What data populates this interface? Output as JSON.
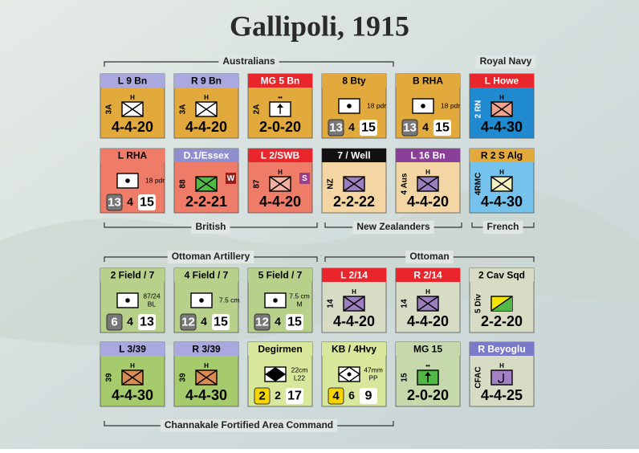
{
  "title": "Gallipoli, 1915",
  "groups": [
    {
      "label": "Australians"
    },
    {
      "label": "Royal Navy"
    },
    {
      "label": "British"
    },
    {
      "label": "New Zealanders"
    },
    {
      "label": "French"
    },
    {
      "label": "Ottoman Artillery"
    },
    {
      "label": "Ottoman"
    },
    {
      "label": "Channakale Fortified Area Command"
    }
  ],
  "counters": [
    {
      "header": "L 9 Bn",
      "size": "H",
      "side": "3A",
      "strength": [
        "4-4-20"
      ]
    },
    {
      "header": "R 9 Bn",
      "size": "H",
      "side": "3A",
      "strength": [
        "4-4-20"
      ]
    },
    {
      "header": "MG 5 Bn",
      "size": "••",
      "side": "2A",
      "strength": [
        "2-0-20"
      ]
    },
    {
      "header": "8 Bty",
      "note": [
        "18 pdr"
      ],
      "strength": [
        "13",
        "4",
        "15"
      ]
    },
    {
      "header": "B RHA",
      "note": [
        "18 pdr"
      ],
      "strength": [
        "13",
        "4",
        "15"
      ]
    },
    {
      "header": "L Howe",
      "size": "H",
      "side": "2 RN",
      "strength": [
        "4-4-30"
      ]
    },
    {
      "header": "L RHA",
      "note": [
        "18 pdr"
      ],
      "strength": [
        "13",
        "4",
        "15"
      ]
    },
    {
      "header": "D.1/Essex",
      "side": "88",
      "badge": "W",
      "strength": [
        "2-2-21"
      ]
    },
    {
      "header": "L 2/SWB",
      "size": "H",
      "side": "87",
      "badge": "S",
      "strength": [
        "4-4-20"
      ]
    },
    {
      "header": "7 / Well",
      "side": "NZ",
      "strength": [
        "2-2-22"
      ]
    },
    {
      "header": "L 16 Bn",
      "size": "H",
      "side": "4 Aus",
      "strength": [
        "4-4-20"
      ]
    },
    {
      "header": "R 2 S Alg",
      "size": "H",
      "side": "4RMC",
      "strength": [
        "4-4-30"
      ]
    },
    {
      "header": "2 Field / 7",
      "note": [
        "87/24",
        "BL"
      ],
      "strength": [
        "6",
        "4",
        "13"
      ]
    },
    {
      "header": "4 Field / 7",
      "note": [
        "7.5 cm"
      ],
      "strength": [
        "12",
        "4",
        "15"
      ]
    },
    {
      "header": "5 Field / 7",
      "note": [
        "7.5 cm",
        "M"
      ],
      "strength": [
        "12",
        "4",
        "15"
      ]
    },
    {
      "header": "L 2/14",
      "size": "H",
      "side": "14",
      "strength": [
        "4-4-20"
      ]
    },
    {
      "header": "R 2/14",
      "size": "H",
      "side": "14",
      "strength": [
        "4-4-20"
      ]
    },
    {
      "header": "2 Cav Sqd",
      "side": "5 Div",
      "strength": [
        "2-2-20"
      ]
    },
    {
      "header": "L 3/39",
      "size": "H",
      "side": "39",
      "strength": [
        "4-4-30"
      ]
    },
    {
      "header": "R 3/39",
      "size": "H",
      "side": "39",
      "strength": [
        "4-4-30"
      ]
    },
    {
      "header": "Degirmen",
      "note": [
        "22cm",
        "L22"
      ],
      "strength": [
        "2",
        "2",
        "17"
      ]
    },
    {
      "header": "KB / 4Hvy",
      "note": [
        "47mm",
        "PP"
      ],
      "strength": [
        "4",
        "6",
        "9"
      ]
    },
    {
      "header": "MG 15",
      "size": "••",
      "side": "15",
      "strength": [
        "2-0-20"
      ]
    },
    {
      "header": "R Beyoglu",
      "size": "H",
      "side": "CFAC",
      "strength": [
        "4-4-25"
      ]
    }
  ]
}
